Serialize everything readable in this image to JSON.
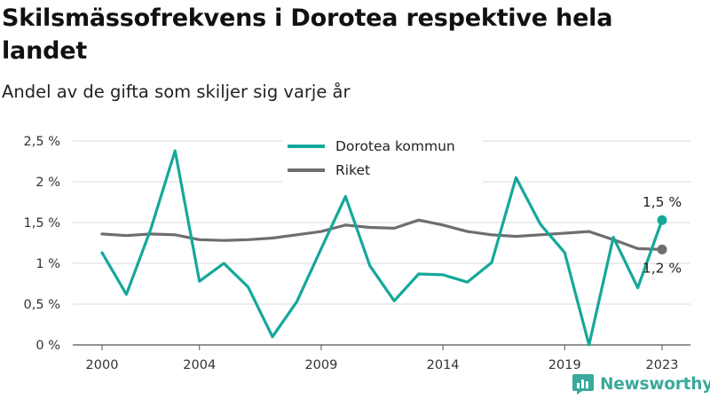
{
  "header": {
    "title": "Skilsmässofrekvens i Dorotea respektive hela landet",
    "subtitle": "Andel av de gifta som skiljer sig varje år"
  },
  "brand": {
    "name": "Newsworthy",
    "icon": "newsworthy-logo-icon",
    "color": "#3aa99b"
  },
  "chart_data": {
    "type": "line",
    "x": [
      2000,
      2001,
      2002,
      2003,
      2004,
      2005,
      2006,
      2007,
      2008,
      2009,
      2010,
      2011,
      2012,
      2013,
      2014,
      2015,
      2016,
      2017,
      2018,
      2019,
      2020,
      2021,
      2022,
      2023
    ],
    "x_ticks": [
      2000,
      2004,
      2009,
      2014,
      2019,
      2023
    ],
    "x_tick_labels": [
      "2000",
      "2004",
      "2009",
      "2014",
      "2019",
      "2023"
    ],
    "ylim": [
      0,
      2.5
    ],
    "y_ticks": [
      0,
      0.5,
      1,
      1.5,
      2,
      2.5
    ],
    "y_tick_labels": [
      "0 %",
      "0,5 %",
      "1 %",
      "1,5 %",
      "2 %",
      "2,5 %"
    ],
    "grid": "horizontal",
    "legend_position": "top-center",
    "series": [
      {
        "name": "Dorotea kommun",
        "color": "#14a89a",
        "values": [
          1.13,
          0.62,
          1.42,
          2.38,
          0.78,
          1.0,
          0.71,
          0.1,
          0.53,
          1.18,
          1.82,
          0.97,
          0.54,
          0.87,
          0.86,
          0.77,
          1.01,
          2.05,
          1.48,
          1.13,
          0.0,
          1.32,
          0.7,
          1.53
        ],
        "end_label": "1,5 %"
      },
      {
        "name": "Riket",
        "color": "#6e6e72",
        "values": [
          1.36,
          1.34,
          1.36,
          1.35,
          1.29,
          1.28,
          1.29,
          1.31,
          1.35,
          1.39,
          1.47,
          1.44,
          1.43,
          1.53,
          1.47,
          1.39,
          1.35,
          1.33,
          1.35,
          1.37,
          1.39,
          1.29,
          1.18,
          1.17
        ],
        "end_label": "1,2 %"
      }
    ]
  }
}
